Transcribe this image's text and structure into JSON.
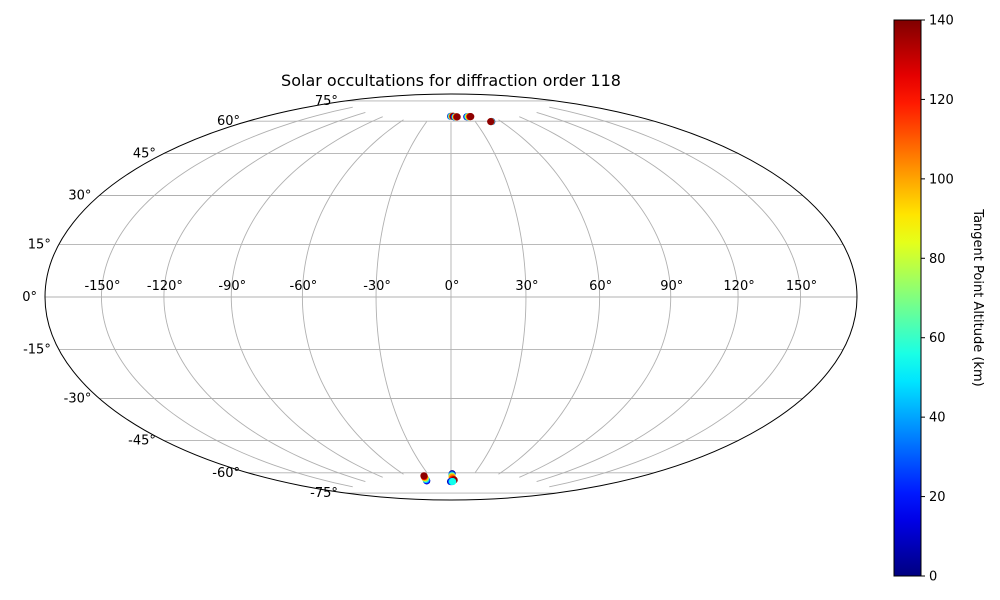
{
  "chart_data": {
    "type": "scatter",
    "projection": "hammer",
    "title": "Solar occultations for diffraction order 118",
    "grid": true,
    "x_ticks": [
      "-150°",
      "-120°",
      "-90°",
      "-60°",
      "-30°",
      "0°",
      "30°",
      "60°",
      "90°",
      "120°",
      "150°"
    ],
    "x_tick_values": [
      -150,
      -120,
      -90,
      -60,
      -30,
      0,
      30,
      60,
      90,
      120,
      150
    ],
    "y_ticks": [
      "-75°",
      "-60°",
      "-45°",
      "-30°",
      "-15°",
      "0°",
      "15°",
      "30°",
      "45°",
      "60°",
      "75°"
    ],
    "y_tick_values": [
      -75,
      -60,
      -45,
      -30,
      -15,
      0,
      15,
      30,
      45,
      60,
      75
    ],
    "xlim": [
      -180,
      180
    ],
    "ylim": [
      -90,
      90
    ],
    "colorbar": {
      "label": "Tangent Point Altitude (km)",
      "range": [
        0,
        140
      ],
      "ticks": [
        "0",
        "20",
        "40",
        "60",
        "80",
        "100",
        "120",
        "140"
      ],
      "tick_values": [
        0,
        20,
        40,
        60,
        80,
        100,
        120,
        140
      ],
      "colormap": "jet"
    },
    "occultations": [
      {
        "points": [
          [
            -0.5,
            78.0,
            10
          ],
          [
            0.2,
            78.0,
            35
          ],
          [
            0.9,
            78.0,
            60
          ],
          [
            1.6,
            78.0,
            80
          ],
          [
            2.3,
            78.0,
            105
          ],
          [
            3.0,
            78.0,
            125
          ],
          [
            3.6,
            78.0,
            138
          ]
        ]
      },
      {
        "points": [
          [
            5.0,
            77.7,
            10
          ],
          [
            5.8,
            77.7,
            40
          ],
          [
            6.6,
            77.7,
            70
          ],
          [
            7.4,
            77.7,
            95
          ],
          [
            8.2,
            77.7,
            120
          ],
          [
            9.0,
            77.7,
            138
          ]
        ]
      },
      {
        "points": [
          [
            23.0,
            77.6,
            10
          ],
          [
            24.0,
            77.6,
            35
          ],
          [
            25.0,
            77.6,
            60
          ],
          [
            26.0,
            77.6,
            85
          ],
          [
            27.0,
            77.6,
            110
          ],
          [
            28.0,
            77.6,
            130
          ],
          [
            28.8,
            77.6,
            138
          ]
        ]
      },
      {
        "points": [
          [
            49.5,
            74.5,
            10
          ],
          [
            49.0,
            74.5,
            50
          ],
          [
            48.6,
            74.5,
            100
          ],
          [
            48.2,
            74.5,
            138
          ]
        ]
      },
      {
        "points": [
          [
            -40.5,
            -79.2,
            5
          ],
          [
            -40.0,
            -79.0,
            20
          ],
          [
            -39.3,
            -78.5,
            45
          ],
          [
            -38.7,
            -78.0,
            70
          ],
          [
            -38.2,
            -77.5,
            95
          ],
          [
            -37.6,
            -77.0,
            120
          ],
          [
            -37.0,
            -76.6,
            138
          ]
        ]
      },
      {
        "points": [
          [
            1.5,
            -76.0,
            5
          ],
          [
            1.2,
            -76.6,
            40
          ],
          [
            1.4,
            -77.2,
            75
          ],
          [
            1.8,
            -77.8,
            100
          ],
          [
            2.6,
            -78.6,
            115
          ],
          [
            3.6,
            -79.0,
            120
          ],
          [
            4.6,
            -79.1,
            130
          ],
          [
            5.2,
            -79.2,
            138
          ]
        ]
      },
      {
        "points": [
          [
            -0.8,
            -80.0,
            5
          ],
          [
            0.2,
            -80.0,
            15
          ],
          [
            1.2,
            -80.0,
            30
          ],
          [
            2.2,
            -80.0,
            45
          ],
          [
            3.0,
            -80.0,
            55
          ]
        ]
      }
    ]
  }
}
